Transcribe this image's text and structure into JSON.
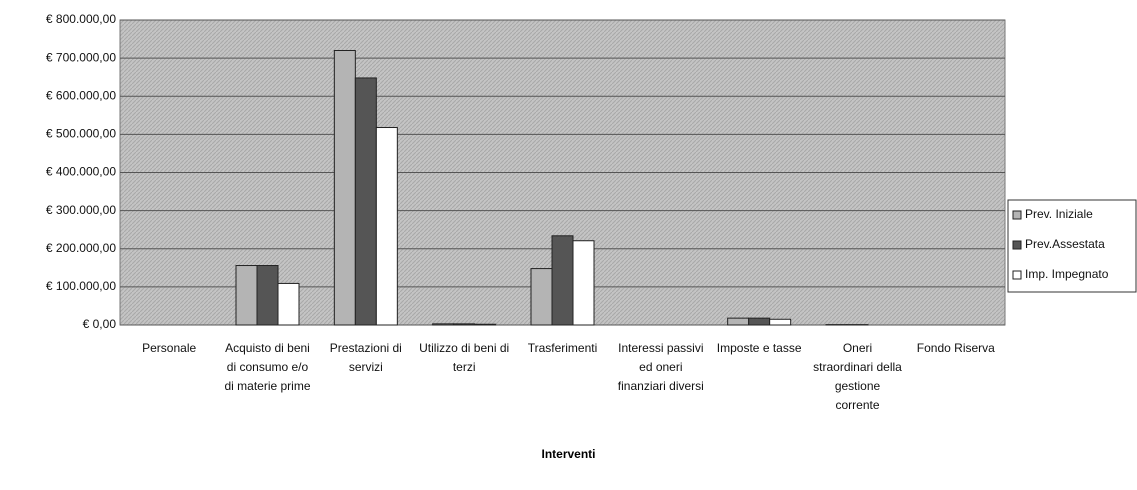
{
  "chart_data": {
    "type": "bar",
    "x_label": "Interventi",
    "categories": [
      "Personale",
      "Acquisto di beni di consumo e/o di materie prime",
      "Prestazioni di servizi",
      "Utilizzo di beni di terzi",
      "Trasferimenti",
      "Interessi passivi ed oneri finanziari diversi",
      "Imposte e tasse",
      "Oneri straordinari della gestione corrente",
      "Fondo Riserva"
    ],
    "series": [
      {
        "name": "Prev. Iniziale",
        "color": "#b4b4b4",
        "values": [
          0,
          156000,
          720000,
          3000,
          148000,
          0,
          18000,
          1000,
          0
        ]
      },
      {
        "name": "Prev.Assestata",
        "color": "#555555",
        "values": [
          0,
          156000,
          648000,
          3000,
          234000,
          0,
          18000,
          1000,
          0
        ]
      },
      {
        "name": "Imp. Impegnato",
        "color": "#ffffff",
        "values": [
          0,
          109000,
          518000,
          2000,
          221000,
          0,
          15000,
          0,
          0
        ]
      }
    ],
    "ylim": [
      0,
      800000
    ],
    "yticks": [
      {
        "value": 0,
        "label": "€ 0,00"
      },
      {
        "value": 100000,
        "label": "€ 100.000,00"
      },
      {
        "value": 200000,
        "label": "€ 200.000,00"
      },
      {
        "value": 300000,
        "label": "€ 300.000,00"
      },
      {
        "value": 400000,
        "label": "€ 400.000,00"
      },
      {
        "value": 500000,
        "label": "€ 500.000,00"
      },
      {
        "value": 600000,
        "label": "€ 600.000,00"
      },
      {
        "value": 700000,
        "label": "€ 700.000,00"
      },
      {
        "value": 800000,
        "label": "€ 800.000,00"
      }
    ],
    "grid": true,
    "legend": "right"
  }
}
